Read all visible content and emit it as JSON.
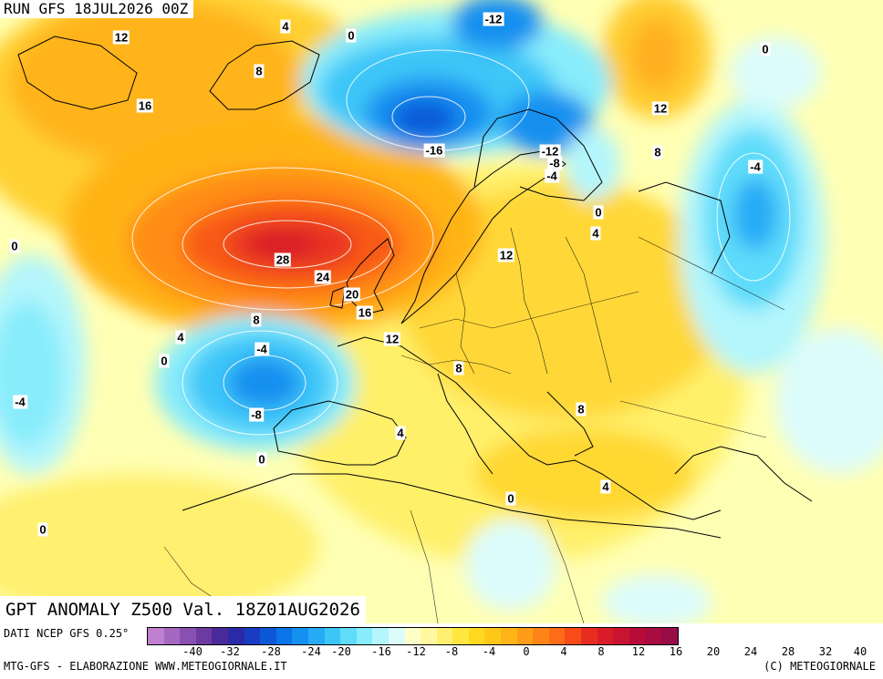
{
  "run_label": "RUN GFS 18JUL2026 00Z",
  "title": "GPT ANOMALY Z500 Val. 18Z01AUG2026",
  "source": "DATI NCEP GFS 0.25°",
  "credit_left": "MTG-GFS - ELABORAZIONE WWW.METEOGIORNALE.IT",
  "credit_right": "(C) METEOGIORNALE",
  "colors": {
    "background": "#ffffb4",
    "land_line": "#000000",
    "contour": "#ffffff"
  },
  "legend": {
    "colors": [
      "#c080d0",
      "#a468c0",
      "#8850b0",
      "#6c3aa0",
      "#4a2a98",
      "#2a2aa8",
      "#1a3cc0",
      "#0c58d8",
      "#0a74e8",
      "#1490f0",
      "#26acf6",
      "#3cc6f8",
      "#5edcfa",
      "#88ecfb",
      "#b4f6fc",
      "#dcfcfc",
      "#ffffc8",
      "#fff8a0",
      "#fff070",
      "#ffe640",
      "#ffd820",
      "#ffc818",
      "#ffb418",
      "#ff9c18",
      "#ff8418",
      "#ff6c18",
      "#f84c18",
      "#e82c20",
      "#d81c28",
      "#c81430",
      "#b80c38",
      "#a80c40",
      "#980c48"
    ],
    "ticks": [
      "-40",
      "-32",
      "-28",
      "-24",
      "-20",
      "-16",
      "-12",
      "-8",
      "-4",
      "0",
      "4",
      "8",
      "12",
      "16",
      "20",
      "24",
      "28",
      "32",
      "40"
    ]
  },
  "contour_labels": [
    {
      "text": "12"
    },
    {
      "text": "4"
    },
    {
      "text": "0"
    },
    {
      "text": "-12"
    },
    {
      "text": "8"
    },
    {
      "text": "16"
    },
    {
      "text": "-16"
    },
    {
      "text": "-12"
    },
    {
      "text": "-8"
    },
    {
      "text": "-4"
    },
    {
      "text": "12"
    },
    {
      "text": "8"
    },
    {
      "text": "0"
    },
    {
      "text": "-4"
    },
    {
      "text": "0"
    },
    {
      "text": "4"
    },
    {
      "text": "0"
    },
    {
      "text": "28"
    },
    {
      "text": "12"
    },
    {
      "text": "24"
    },
    {
      "text": "20"
    },
    {
      "text": "16"
    },
    {
      "text": "8"
    },
    {
      "text": "4"
    },
    {
      "text": "-4"
    },
    {
      "text": "0"
    },
    {
      "text": "12"
    },
    {
      "text": "8"
    },
    {
      "text": "-4"
    },
    {
      "text": "-8"
    },
    {
      "text": "8"
    },
    {
      "text": "4"
    },
    {
      "text": "0"
    },
    {
      "text": "0"
    },
    {
      "text": "4"
    },
    {
      "text": "0"
    }
  ]
}
